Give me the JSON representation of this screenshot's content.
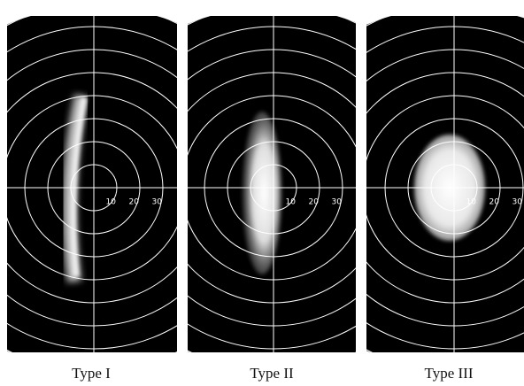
{
  "panels": [
    {
      "label": "Type I",
      "ring_labels": [
        "10",
        "20",
        "30"
      ]
    },
    {
      "label": "Type II",
      "ring_labels": [
        "10",
        "20",
        "30"
      ]
    },
    {
      "label": "Type III",
      "ring_labels": [
        "10",
        "20",
        "30"
      ]
    }
  ]
}
